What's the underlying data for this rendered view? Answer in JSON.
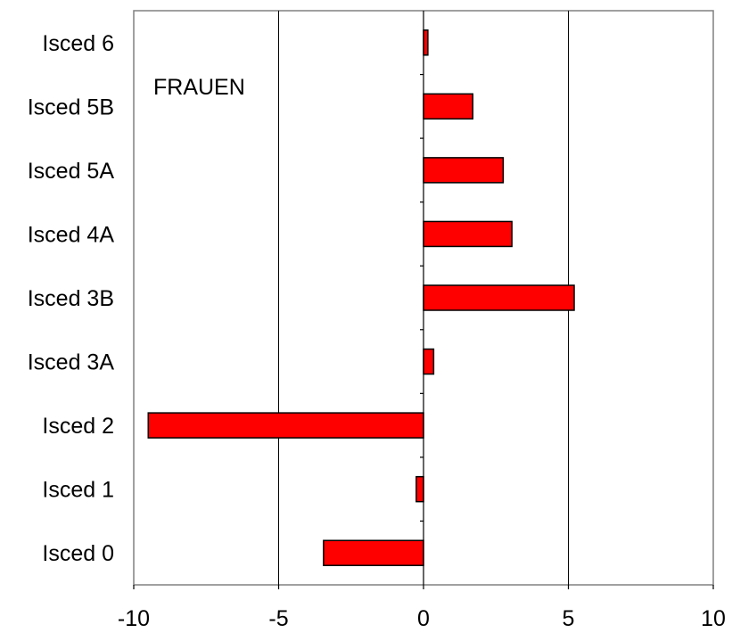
{
  "chart_data": {
    "type": "bar",
    "orientation": "horizontal",
    "categories": [
      "Isced 6",
      "Isced 5B",
      "Isced 5A",
      "Isced 4A",
      "Isced 3B",
      "Isced 3A",
      "Isced 2",
      "Isced 1",
      "Isced 0"
    ],
    "values": [
      0.15,
      1.7,
      2.75,
      3.05,
      5.2,
      0.35,
      -9.5,
      -0.25,
      -3.45
    ],
    "xlim": [
      -10,
      10
    ],
    "xticks": [
      "-10",
      "-5",
      "0",
      "5",
      "10"
    ],
    "xtick_values": [
      -10,
      -5,
      0,
      5,
      10
    ],
    "annotation": "FRAUEN",
    "title": "",
    "xlabel": "",
    "ylabel": "",
    "grid": "vertical",
    "legend": "none",
    "colors": {
      "bar_fill": "#ff0000",
      "bar_stroke": "#000000",
      "frame": "#808080",
      "grid": "#000000",
      "axis": "#000000"
    }
  }
}
